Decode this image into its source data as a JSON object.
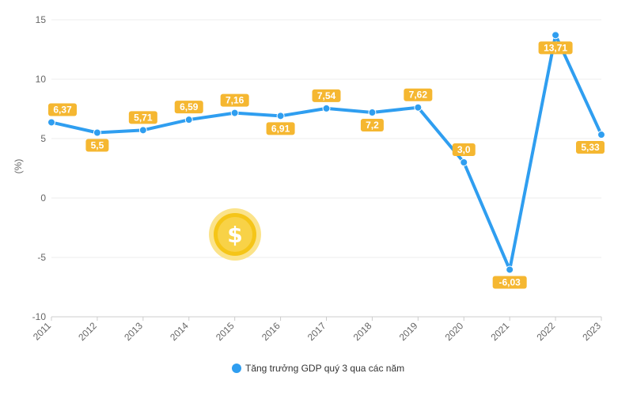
{
  "colors": {
    "line": "#2f9ef0",
    "label_bg": "#f5b731",
    "label_text": "#ffffff",
    "grid": "#ececec",
    "axis": "#cccccc",
    "coin": "#f5c518",
    "coin_ring": "#fbe38a"
  },
  "decor": {
    "icon": "dollar-coin-icon"
  },
  "chart_data": {
    "type": "line",
    "ylabel": "(%)",
    "ylim": [
      -10,
      15
    ],
    "yticks": [
      15,
      10,
      5,
      0,
      -5,
      -10
    ],
    "grid": true,
    "legend_position": "bottom",
    "categories": [
      "2011",
      "2012",
      "2013",
      "2014",
      "2015",
      "2016",
      "2017",
      "2018",
      "2019",
      "2020",
      "2021",
      "2022",
      "2023"
    ],
    "series": [
      {
        "name": "Tăng trưởng GDP quý 3 qua các năm",
        "values": [
          6.37,
          5.5,
          5.71,
          6.59,
          7.16,
          6.91,
          7.54,
          7.2,
          7.62,
          3.0,
          -6.03,
          13.71,
          5.33
        ],
        "labels": [
          "6,37",
          "5,5",
          "5,71",
          "6,59",
          "7,16",
          "6,91",
          "7,54",
          "7,2",
          "7,62",
          "3,0",
          "-6,03",
          "13,71",
          "5,33"
        ]
      }
    ]
  }
}
